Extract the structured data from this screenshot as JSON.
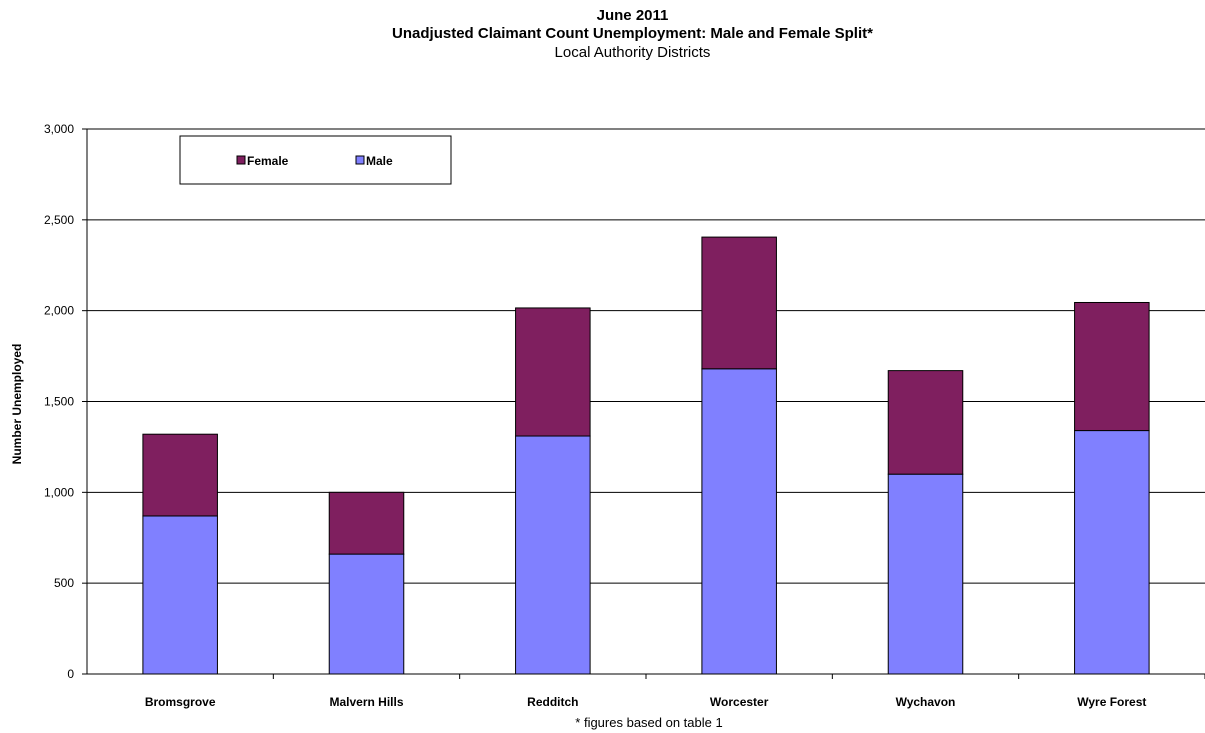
{
  "chart_data": {
    "type": "bar",
    "stacked": true,
    "title": "June 2011",
    "subtitle": "Unadjusted Claimant Count Unemployment: Male and Female Split*",
    "subtitle2": "Local Authority Districts",
    "xlabel": "",
    "ylabel": "Number Unemployed",
    "ylim": [
      0,
      3000
    ],
    "yticks": [
      "0",
      "500",
      "1,000",
      "1,500",
      "2,000",
      "2,500",
      "3,000"
    ],
    "ytick_values": [
      0,
      500,
      1000,
      1500,
      2000,
      2500,
      3000
    ],
    "categories": [
      "Bromsgrove",
      "Malvern Hills",
      "Redditch",
      "Worcester",
      "Wychavon",
      "Wyre Forest"
    ],
    "series": [
      {
        "name": "Male",
        "color": "#8080ff",
        "values": [
          870,
          660,
          1310,
          1680,
          1100,
          1340
        ]
      },
      {
        "name": "Female",
        "color": "#7f1f5f",
        "values": [
          450,
          340,
          705,
          725,
          570,
          705
        ]
      }
    ],
    "legend": {
      "placement": "top-left",
      "order": [
        "Female",
        "Male"
      ]
    },
    "grid": true,
    "footnote": "* figures based on table 1"
  }
}
